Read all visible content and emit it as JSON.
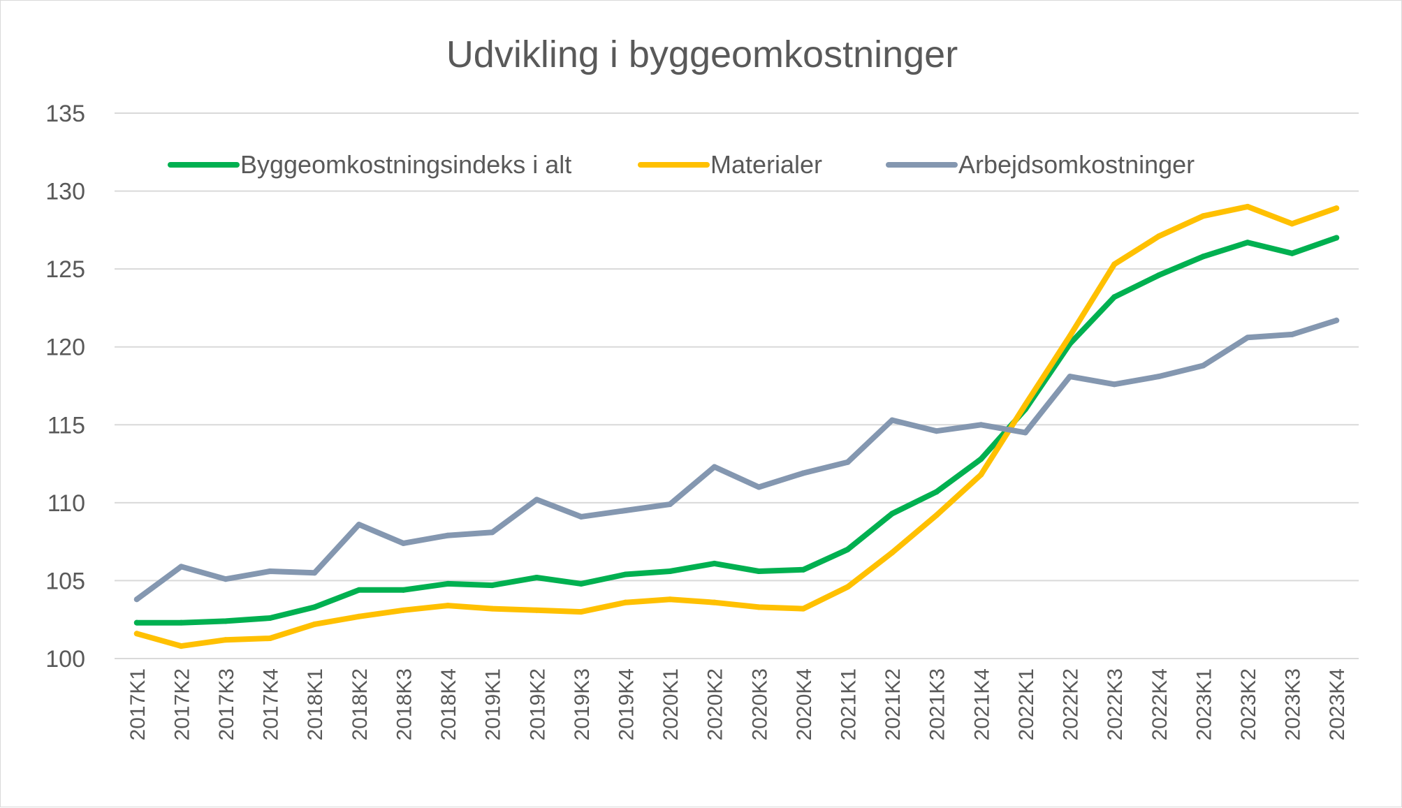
{
  "chart_data": {
    "type": "line",
    "title": "Udvikling i byggeomkostninger",
    "xlabel": "",
    "ylabel": "",
    "ylim": [
      100,
      135
    ],
    "yticks": [
      100,
      105,
      110,
      115,
      120,
      125,
      130,
      135
    ],
    "grid": true,
    "legend_position": "top",
    "categories": [
      "2017K1",
      "2017K2",
      "2017K3",
      "2017K4",
      "2018K1",
      "2018K2",
      "2018K3",
      "2018K4",
      "2019K1",
      "2019K2",
      "2019K3",
      "2019K4",
      "2020K1",
      "2020K2",
      "2020K3",
      "2020K4",
      "2021K1",
      "2021K2",
      "2021K3",
      "2021K4",
      "2022K1",
      "2022K2",
      "2022K3",
      "2022K4",
      "2023K1",
      "2023K2",
      "2023K3",
      "2023K4"
    ],
    "series": [
      {
        "name": "Byggeomkostningsindeks i alt",
        "color": "#00b050",
        "values": [
          102.3,
          102.3,
          102.4,
          102.6,
          103.3,
          104.4,
          104.4,
          104.8,
          104.7,
          105.2,
          104.8,
          105.4,
          105.6,
          106.1,
          105.6,
          105.7,
          107.0,
          109.3,
          110.7,
          112.8,
          116.0,
          120.2,
          123.2,
          124.6,
          125.8,
          126.7,
          126.0,
          127.0
        ]
      },
      {
        "name": "Materialer",
        "color": "#ffc000",
        "values": [
          101.6,
          100.8,
          101.2,
          101.3,
          102.2,
          102.7,
          103.1,
          103.4,
          103.2,
          103.1,
          103.0,
          103.6,
          103.8,
          103.6,
          103.3,
          103.2,
          104.6,
          106.8,
          109.2,
          111.8,
          116.3,
          120.7,
          125.3,
          127.1,
          128.4,
          129.0,
          127.9,
          128.9
        ]
      },
      {
        "name": "Arbejdsomkostninger",
        "color": "#8497b0",
        "values": [
          103.8,
          105.9,
          105.1,
          105.6,
          105.5,
          108.6,
          107.4,
          107.9,
          108.1,
          110.2,
          109.1,
          109.5,
          109.9,
          112.3,
          111.0,
          111.9,
          112.6,
          115.3,
          114.6,
          115.0,
          114.5,
          118.1,
          117.6,
          118.1,
          118.8,
          120.6,
          120.8,
          121.7
        ]
      }
    ]
  }
}
